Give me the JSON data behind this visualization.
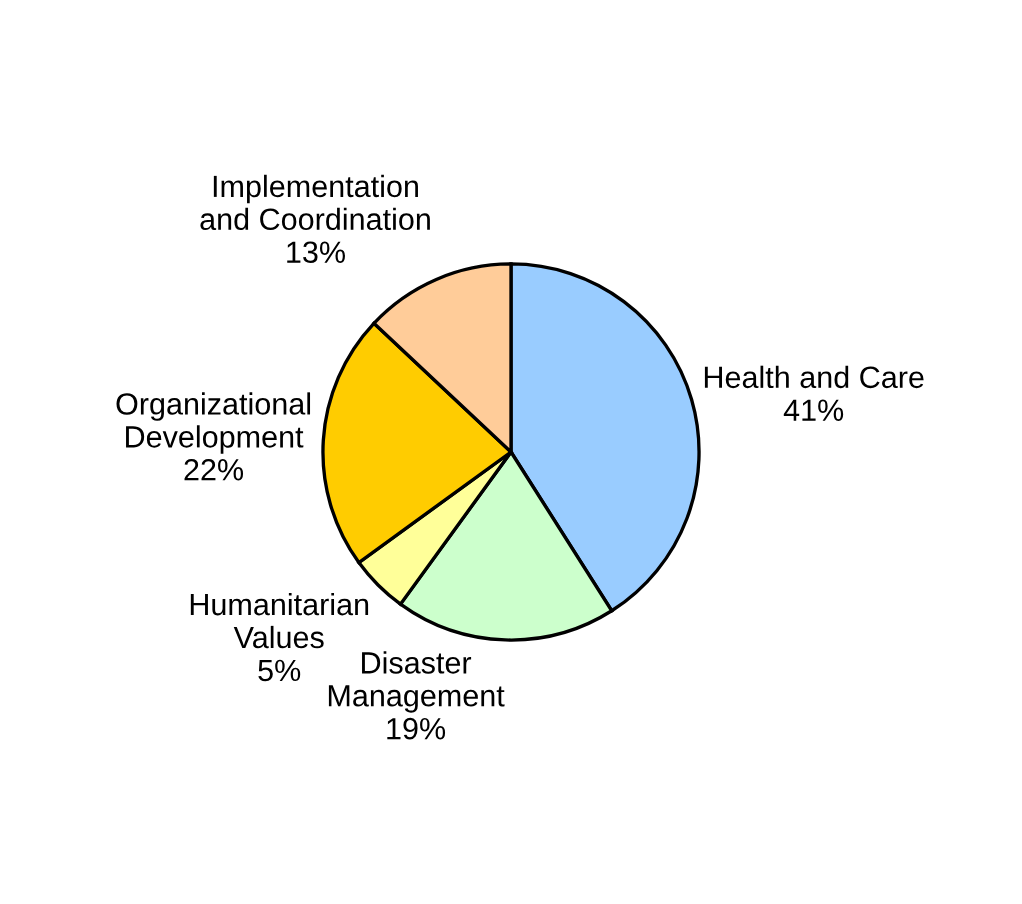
{
  "chart_data": {
    "type": "pie",
    "categories": [
      "Health and Care",
      "Disaster\nManagement",
      "Humanitarian\nValues",
      "Organizational\nDevelopment",
      "Implementation\nand Coordination"
    ],
    "values": [
      41,
      19,
      5,
      22,
      13
    ],
    "value_labels": [
      "41%",
      "19%",
      "5%",
      "22%",
      "13%"
    ],
    "colors": [
      "#99ccff",
      "#ccffcc",
      "#ffff99",
      "#ffcc00",
      "#ffcc99"
    ],
    "legend": false
  }
}
